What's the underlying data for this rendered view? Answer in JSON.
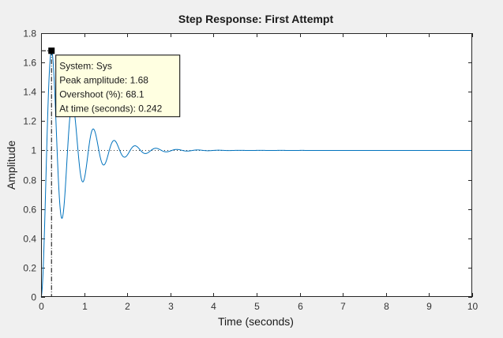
{
  "chart_data": {
    "type": "line",
    "title": "Step Response: First Attempt",
    "xlabel": "Time (seconds)",
    "ylabel": "Amplitude",
    "xlim": [
      0,
      10
    ],
    "ylim": [
      0,
      1.8
    ],
    "xticks": [
      0,
      1,
      2,
      3,
      4,
      5,
      6,
      7,
      8,
      9,
      10
    ],
    "xtick_labels": [
      "0",
      "1",
      "2",
      "3",
      "4",
      "5",
      "6",
      "7",
      "8",
      "9",
      "10"
    ],
    "yticks": [
      0,
      0.2,
      0.4,
      0.6,
      0.8,
      1,
      1.2,
      1.4,
      1.6,
      1.8
    ],
    "ytick_labels": [
      "0",
      "0.2",
      "0.4",
      "0.6",
      "0.8",
      "1",
      "1.2",
      "1.4",
      "1.6",
      "1.8"
    ],
    "grid": false,
    "steady_state": 1,
    "series": [
      {
        "color": "#0072bd",
        "model": "underdamped second-order step response",
        "final_value": 1,
        "peak_time": 0.242,
        "peak_amplitude": 1.68,
        "overshoot_percent": 68.1
      }
    ],
    "marker": {
      "x": 0.242,
      "y": 1.68
    },
    "datatip": {
      "lines": [
        "System: Sys",
        "Peak amplitude: 1.68",
        "Overshoot (%): 68.1",
        "At time (seconds): 0.242"
      ]
    },
    "colors": {
      "background": "#f0f0f0",
      "axes_background": "#ffffff",
      "response": "#0072bd",
      "tip_background": "#ffffe1"
    }
  }
}
